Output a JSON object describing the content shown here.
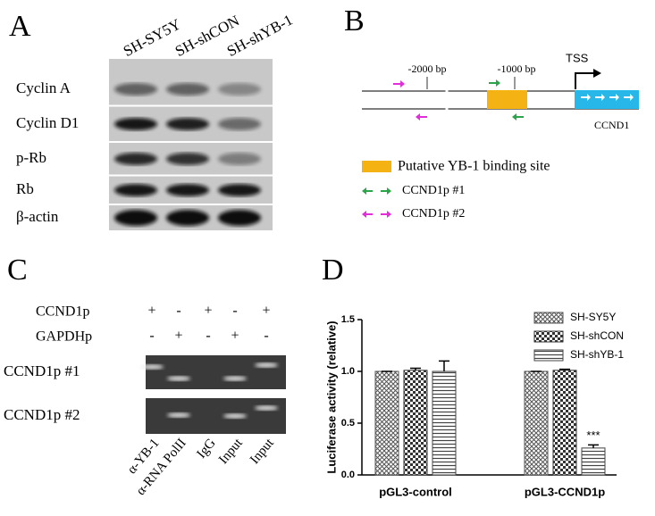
{
  "panel_labels": [
    "A",
    "B",
    "C",
    "D"
  ],
  "panel_a": {
    "columns": [
      "SH-SY5Y",
      "SH-shCON",
      "SH-shYB-1"
    ],
    "rows": [
      "Cyclin A",
      "Cyclin D1",
      "p-Rb",
      "Rb",
      "β-actin"
    ]
  },
  "panel_b": {
    "markers": [
      "-2000 bp",
      "-1000 bp"
    ],
    "tss": "TSS",
    "gene": "CCND1",
    "legend": [
      "Putative YB-1 binding site",
      "CCND1p #1",
      "CCND1p #2"
    ]
  },
  "panel_c": {
    "rows": [
      {
        "label": "CCND1p",
        "signs": [
          "+",
          "-",
          "+",
          "-",
          "+"
        ]
      },
      {
        "label": "GAPDHp",
        "signs": [
          "-",
          "+",
          "-",
          "+",
          "-"
        ]
      }
    ],
    "gels": [
      "CCND1p #1",
      "CCND1p #2"
    ],
    "lanes": [
      "α-YB-1",
      "α-RNA PolII",
      "IgG",
      "Input",
      "Input"
    ]
  },
  "chart_data": {
    "type": "bar",
    "ylabel": "Luciferase activity (relative)",
    "categories": [
      "pGL3-control",
      "pGL3-CCND1p"
    ],
    "series": [
      {
        "name": "SH-SY5Y",
        "color": "#555555",
        "pattern": "crosshatch",
        "values": [
          1.0,
          1.0
        ],
        "errors": [
          0.0,
          0.0
        ]
      },
      {
        "name": "SH-shCON",
        "color": "#333333",
        "pattern": "checker",
        "values": [
          1.01,
          1.01
        ],
        "errors": [
          0.02,
          0.01
        ]
      },
      {
        "name": "SH-shYB-1",
        "color": "#444444",
        "pattern": "hlines",
        "values": [
          1.0,
          0.26
        ],
        "errors": [
          0.1,
          0.03
        ]
      }
    ],
    "ylim": [
      0,
      1.5
    ],
    "yticks": [
      {
        "value": 0,
        "label": "0.0"
      },
      0.5,
      {
        "value": 1,
        "label": "1.0"
      },
      1.5
    ],
    "annotations": [
      {
        "text": "***",
        "series": 2,
        "category": 1
      }
    ],
    "legend": "upper right"
  }
}
